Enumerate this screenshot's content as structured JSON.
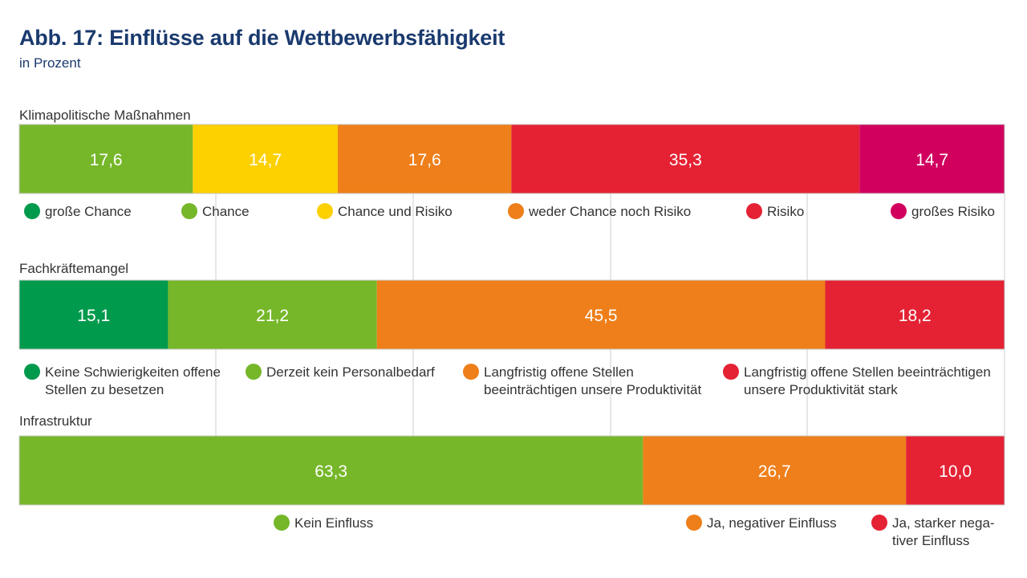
{
  "header": {
    "title": "Abb. 17: Einflüsse auf die Wettbewerbsfähigkeit",
    "subtitle": "in Prozent"
  },
  "chart_data": {
    "type": "bar",
    "orientation": "horizontal",
    "stacked": true,
    "xlim": [
      0,
      100
    ],
    "grid": true,
    "groups": [
      {
        "name": "Klimapolitische Maßnahmen",
        "segments": [
          {
            "value": 17.6,
            "label": "17,6",
            "color": "#76b72a"
          },
          {
            "value": 14.7,
            "label": "14,7",
            "color": "#fdd000"
          },
          {
            "value": 17.6,
            "label": "17,6",
            "color": "#ee7f1a"
          },
          {
            "value": 35.3,
            "label": "35,3",
            "color": "#e42234"
          },
          {
            "value": 14.7,
            "label": "14,7",
            "color": "#d1005f"
          }
        ],
        "legend": [
          {
            "lines": [
              "große Chance"
            ],
            "color": "#009a4d"
          },
          {
            "lines": [
              "Chance"
            ],
            "color": "#76b72a"
          },
          {
            "lines": [
              "Chance und Risiko"
            ],
            "color": "#fdd000"
          },
          {
            "lines": [
              "weder Chance noch Risiko"
            ],
            "color": "#ee7f1a"
          },
          {
            "lines": [
              "Risiko"
            ],
            "color": "#e42234"
          },
          {
            "lines": [
              "großes Risiko"
            ],
            "color": "#d1005f"
          }
        ]
      },
      {
        "name": "Fachkräftemangel",
        "segments": [
          {
            "value": 15.1,
            "label": "15,1",
            "color": "#009a4d"
          },
          {
            "value": 21.2,
            "label": "21,2",
            "color": "#76b72a"
          },
          {
            "value": 45.5,
            "label": "45,5",
            "color": "#ee7f1a"
          },
          {
            "value": 18.2,
            "label": "18,2",
            "color": "#e42234"
          }
        ],
        "legend": [
          {
            "lines": [
              "Keine Schwierigkeiten offene",
              "Stellen zu besetzen"
            ],
            "color": "#009a4d"
          },
          {
            "lines": [
              "Derzeit kein Personalbedarf"
            ],
            "color": "#76b72a"
          },
          {
            "lines": [
              "Langfristig offene Stellen",
              "beeinträchtigen unsere Produktivität"
            ],
            "color": "#ee7f1a"
          },
          {
            "lines": [
              "Langfristig offene Stellen beeinträchtigen",
              "unsere Produktivität stark"
            ],
            "color": "#e42234"
          }
        ]
      },
      {
        "name": "Infrastruktur",
        "segments": [
          {
            "value": 63.3,
            "label": "63,3",
            "color": "#76b72a"
          },
          {
            "value": 26.7,
            "label": "26,7",
            "color": "#ee7f1a"
          },
          {
            "value": 10.0,
            "label": "10,0",
            "color": "#e42234"
          }
        ],
        "legend": [
          {
            "lines": [
              "Kein Einfluss"
            ],
            "color": "#76b72a"
          },
          {
            "lines": [
              "Ja, negativer Einfluss"
            ],
            "color": "#ee7f1a"
          },
          {
            "lines": [
              "Ja, starker nega-",
              "tiver Einfluss"
            ],
            "color": "#e42234"
          }
        ]
      }
    ]
  }
}
